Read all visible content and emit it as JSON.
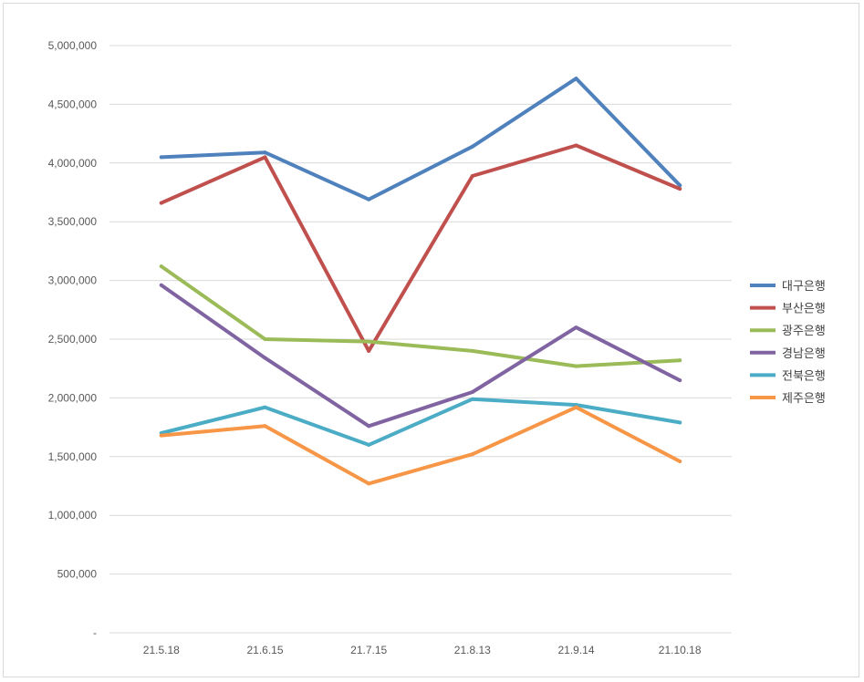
{
  "chart_data": {
    "type": "line",
    "title": "",
    "xlabel": "",
    "ylabel": "",
    "categories": [
      "21.5.18",
      "21.6.15",
      "21.7.15",
      "21.8.13",
      "21.9.14",
      "21.10.18"
    ],
    "ylim": [
      0,
      5000000
    ],
    "y_ticks": [
      {
        "value": 0,
        "label": "-"
      },
      {
        "value": 500000,
        "label": "500,000"
      },
      {
        "value": 1000000,
        "label": "1,000,000"
      },
      {
        "value": 1500000,
        "label": "1,500,000"
      },
      {
        "value": 2000000,
        "label": "2,000,000"
      },
      {
        "value": 2500000,
        "label": "2,500,000"
      },
      {
        "value": 3000000,
        "label": "3,000,000"
      },
      {
        "value": 3500000,
        "label": "3,500,000"
      },
      {
        "value": 4000000,
        "label": "4,000,000"
      },
      {
        "value": 4500000,
        "label": "4,500,000"
      },
      {
        "value": 5000000,
        "label": "5,000,000"
      }
    ],
    "grid": true,
    "legend_position": "right",
    "series": [
      {
        "name": "대구은행",
        "color": "#4f81bd",
        "values": [
          4050000,
          4090000,
          3690000,
          4140000,
          4720000,
          3810000
        ]
      },
      {
        "name": "부산은행",
        "color": "#c0504d",
        "values": [
          3660000,
          4050000,
          2400000,
          3890000,
          4150000,
          3780000
        ]
      },
      {
        "name": "광주은행",
        "color": "#9bbb59",
        "values": [
          3120000,
          2500000,
          2480000,
          2400000,
          2270000,
          2320000
        ]
      },
      {
        "name": "경남은행",
        "color": "#8064a2",
        "values": [
          2960000,
          2340000,
          1760000,
          2050000,
          2600000,
          2150000
        ]
      },
      {
        "name": "전북은행",
        "color": "#4bacc6",
        "values": [
          1700000,
          1920000,
          1600000,
          1990000,
          1940000,
          1790000
        ]
      },
      {
        "name": "제주은행",
        "color": "#f79646",
        "values": [
          1680000,
          1760000,
          1270000,
          1520000,
          1920000,
          1460000
        ]
      }
    ]
  }
}
